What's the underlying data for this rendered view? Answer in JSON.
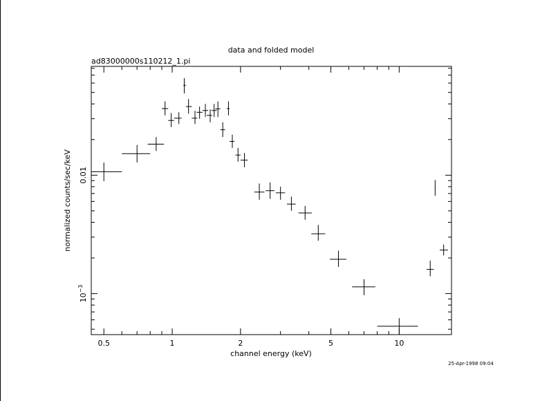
{
  "chart_data": {
    "type": "scatter",
    "title": "data and folded model",
    "subtitle": "ad83000000s110212_1.pi",
    "xlabel": "channel energy (keV)",
    "ylabel": "normalized counts/sec/keV",
    "xscale": "log",
    "yscale": "log",
    "xlim": [
      0.44,
      17.0
    ],
    "ylim": [
      0.00045,
      0.083
    ],
    "xticks": [
      {
        "value": 0.5,
        "label": "0.5"
      },
      {
        "value": 1,
        "label": "1"
      },
      {
        "value": 2,
        "label": "2"
      },
      {
        "value": 5,
        "label": "5"
      },
      {
        "value": 10,
        "label": "10"
      }
    ],
    "yticks": [
      {
        "value": 0.001,
        "label": "10",
        "exponent": "−3"
      },
      {
        "value": 0.01,
        "label": "0.01"
      }
    ],
    "timestamp": "25-Apr-1998 09:04",
    "series": [
      {
        "points": [
          {
            "x": 0.5,
            "y": 0.0107,
            "xlo": 0.44,
            "xhi": 0.6,
            "ylo": 0.0089,
            "yhi": 0.0128
          },
          {
            "x": 0.7,
            "y": 0.0152,
            "xlo": 0.6,
            "xhi": 0.8,
            "ylo": 0.0128,
            "yhi": 0.018
          },
          {
            "x": 0.85,
            "y": 0.0183,
            "xlo": 0.78,
            "xhi": 0.92,
            "ylo": 0.016,
            "yhi": 0.021
          },
          {
            "x": 0.93,
            "y": 0.0365,
            "xlo": 0.9,
            "xhi": 0.96,
            "ylo": 0.032,
            "yhi": 0.042
          },
          {
            "x": 0.99,
            "y": 0.029,
            "xlo": 0.96,
            "xhi": 1.02,
            "ylo": 0.0255,
            "yhi": 0.0335
          },
          {
            "x": 1.07,
            "y": 0.0303,
            "xlo": 1.02,
            "xhi": 1.1,
            "ylo": 0.027,
            "yhi": 0.034
          },
          {
            "x": 1.13,
            "y": 0.0575,
            "xlo": 1.12,
            "xhi": 1.15,
            "ylo": 0.049,
            "yhi": 0.066
          },
          {
            "x": 1.18,
            "y": 0.038,
            "xlo": 1.15,
            "xhi": 1.22,
            "ylo": 0.033,
            "yhi": 0.044
          },
          {
            "x": 1.26,
            "y": 0.0303,
            "xlo": 1.22,
            "xhi": 1.29,
            "ylo": 0.027,
            "yhi": 0.035
          },
          {
            "x": 1.32,
            "y": 0.034,
            "xlo": 1.28,
            "xhi": 1.36,
            "ylo": 0.03,
            "yhi": 0.038
          },
          {
            "x": 1.4,
            "y": 0.0352,
            "xlo": 1.36,
            "xhi": 1.44,
            "ylo": 0.031,
            "yhi": 0.04
          },
          {
            "x": 1.47,
            "y": 0.032,
            "xlo": 1.42,
            "xhi": 1.5,
            "ylo": 0.028,
            "yhi": 0.036
          },
          {
            "x": 1.53,
            "y": 0.0352,
            "xlo": 1.49,
            "xhi": 1.57,
            "ylo": 0.031,
            "yhi": 0.04
          },
          {
            "x": 1.59,
            "y": 0.0363,
            "xlo": 1.55,
            "xhi": 1.63,
            "ylo": 0.031,
            "yhi": 0.042
          },
          {
            "x": 1.67,
            "y": 0.0242,
            "xlo": 1.63,
            "xhi": 1.71,
            "ylo": 0.021,
            "yhi": 0.028
          },
          {
            "x": 1.77,
            "y": 0.0365,
            "xlo": 1.74,
            "xhi": 1.79,
            "ylo": 0.032,
            "yhi": 0.042
          },
          {
            "x": 1.84,
            "y": 0.0193,
            "xlo": 1.79,
            "xhi": 1.88,
            "ylo": 0.017,
            "yhi": 0.022
          },
          {
            "x": 1.95,
            "y": 0.0148,
            "xlo": 1.9,
            "xhi": 2.0,
            "ylo": 0.013,
            "yhi": 0.017
          },
          {
            "x": 2.08,
            "y": 0.0134,
            "xlo": 2.0,
            "xhi": 2.15,
            "ylo": 0.0117,
            "yhi": 0.0154
          },
          {
            "x": 2.42,
            "y": 0.0072,
            "xlo": 2.3,
            "xhi": 2.55,
            "ylo": 0.0062,
            "yhi": 0.0085
          },
          {
            "x": 2.7,
            "y": 0.0074,
            "xlo": 2.58,
            "xhi": 2.82,
            "ylo": 0.0063,
            "yhi": 0.0087
          },
          {
            "x": 3.0,
            "y": 0.0071,
            "xlo": 2.86,
            "xhi": 3.14,
            "ylo": 0.0062,
            "yhi": 0.008
          },
          {
            "x": 3.35,
            "y": 0.0057,
            "xlo": 3.2,
            "xhi": 3.5,
            "ylo": 0.005,
            "yhi": 0.0066
          },
          {
            "x": 3.85,
            "y": 0.0048,
            "xlo": 3.6,
            "xhi": 4.12,
            "ylo": 0.0042,
            "yhi": 0.0055
          },
          {
            "x": 4.4,
            "y": 0.0032,
            "xlo": 4.1,
            "xhi": 4.72,
            "ylo": 0.0028,
            "yhi": 0.0038
          },
          {
            "x": 5.4,
            "y": 0.00195,
            "xlo": 4.95,
            "xhi": 5.85,
            "ylo": 0.00168,
            "yhi": 0.0023
          },
          {
            "x": 7.0,
            "y": 0.00114,
            "xlo": 6.2,
            "xhi": 7.85,
            "ylo": 0.00097,
            "yhi": 0.00132
          },
          {
            "x": 10.0,
            "y": 0.00053,
            "xlo": 8.0,
            "xhi": 12.1,
            "ylo": 0.00045,
            "yhi": 0.00062
          },
          {
            "x": 13.7,
            "y": 0.0016,
            "xlo": 13.2,
            "xhi": 14.2,
            "ylo": 0.0014,
            "yhi": 0.0019
          },
          {
            "x": 14.4,
            "y": 0.0078,
            "xlo": 14.35,
            "xhi": 14.45,
            "ylo": 0.0067,
            "yhi": 0.0091
          },
          {
            "x": 15.7,
            "y": 0.00233,
            "xlo": 15.1,
            "xhi": 16.4,
            "ylo": 0.0021,
            "yhi": 0.0026
          }
        ]
      }
    ]
  }
}
